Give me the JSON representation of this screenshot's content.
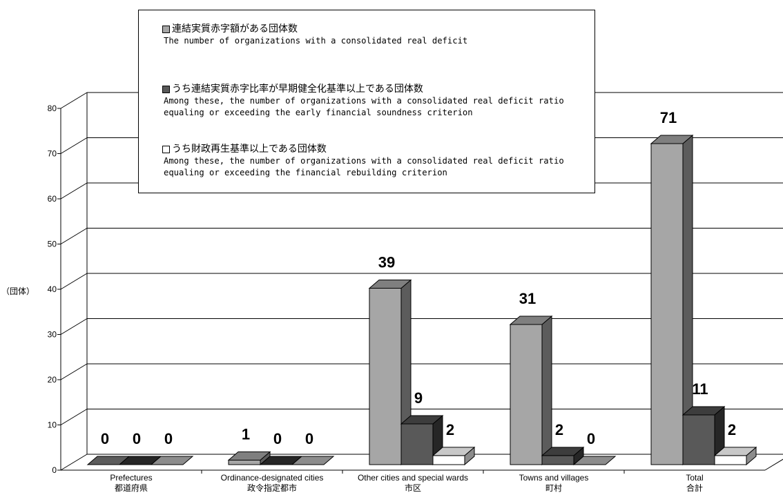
{
  "chart_data": {
    "type": "bar",
    "ylabel": "（団体）",
    "ylim": [
      0,
      80
    ],
    "yticks": [
      0,
      10,
      20,
      30,
      40,
      50,
      60,
      70,
      80
    ],
    "categories": [
      {
        "en": "Prefectures",
        "jp": "都道府県"
      },
      {
        "en": "Ordinance-designated cities",
        "jp": "政令指定都市"
      },
      {
        "en": "Other cities and special wards",
        "jp": "市区"
      },
      {
        "en": "Towns and villages",
        "jp": "町村"
      },
      {
        "en": "Total",
        "jp": "合計"
      }
    ],
    "series": [
      {
        "name_jp": "連結実質赤字額がある団体数",
        "name_en": "The number of organizations with a consolidated real deficit",
        "color": "#a6a6a6",
        "side_color": "#5c5c5c",
        "top_color": "#7f7f7f",
        "values": [
          0,
          1,
          39,
          31,
          71
        ]
      },
      {
        "name_jp": "うち連結実質赤字比率が早期健全化基準以上である団体数",
        "name_en_lines": [
          "Among these, the number of organizations with a consolidated real deficit ratio",
          "equaling or exceeding the early financial soundness criterion"
        ],
        "color": "#595959",
        "side_color": "#262626",
        "top_color": "#3d3d3d",
        "values": [
          0,
          0,
          9,
          2,
          11
        ]
      },
      {
        "name_jp": "うち財政再生基準以上である団体数",
        "name_en_lines": [
          "Among these, the number of organizations with a consolidated real deficit ratio",
          "equaling or exceeding the financial rebuilding criterion"
        ],
        "color": "#ffffff",
        "side_color": "#8c8c8c",
        "top_color": "#c8c8c8",
        "values": [
          0,
          0,
          2,
          0,
          2
        ]
      }
    ],
    "legend": "top-center",
    "grid": true
  }
}
